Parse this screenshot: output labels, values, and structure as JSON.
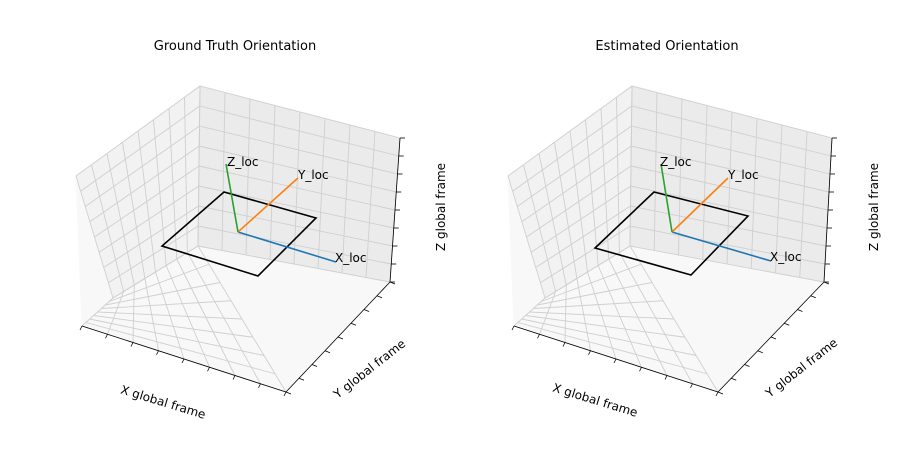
{
  "colors": {
    "x_axis": "#1f77b4",
    "y_axis": "#ff7f0e",
    "z_axis": "#2ca02c",
    "plate": "#000000",
    "pane_back": "#ebebeb",
    "pane_side": "#f2f2f2",
    "pane_floor": "#f8f8f8",
    "grid": "#cfcfcf"
  },
  "chart_data": [
    {
      "type": "3d-line",
      "title": "Ground Truth Orientation",
      "xlabel": "X global frame",
      "ylabel": "Y global frame",
      "zlabel": "Z global frame",
      "tick_labels_visible": false,
      "grid": true,
      "vector_labels": [
        "X_loc",
        "Y_loc",
        "Z_loc"
      ],
      "series": [
        {
          "name": "X_loc",
          "color": "#1f77b4"
        },
        {
          "name": "Y_loc",
          "color": "#ff7f0e"
        },
        {
          "name": "Z_loc",
          "color": "#2ca02c"
        }
      ]
    },
    {
      "type": "3d-line",
      "title": "Estimated Orientation",
      "xlabel": "X global frame",
      "ylabel": "Y global frame",
      "zlabel": "Z global frame",
      "tick_labels_visible": false,
      "grid": true,
      "vector_labels": [
        "X_loc",
        "Y_loc",
        "Z_loc"
      ],
      "series": [
        {
          "name": "X_loc",
          "color": "#1f77b4"
        },
        {
          "name": "Y_loc",
          "color": "#ff7f0e"
        },
        {
          "name": "Z_loc",
          "color": "#2ca02c"
        }
      ]
    }
  ]
}
